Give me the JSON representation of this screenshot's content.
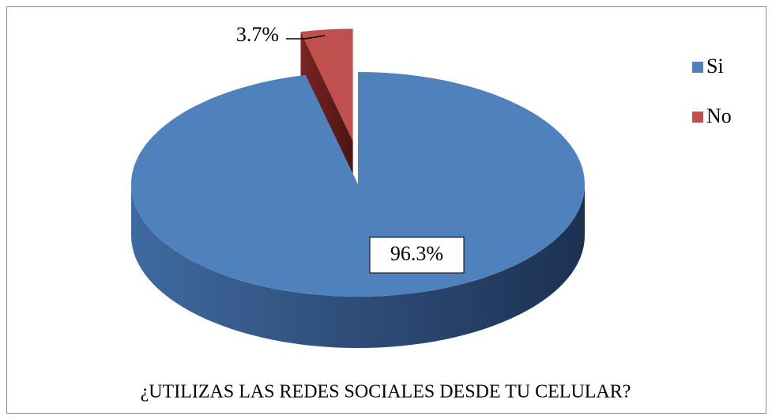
{
  "chart_data": {
    "type": "pie",
    "title": "¿UTILIZAS LAS REDES SOCIALES DESDE TU CELULAR?",
    "categories": [
      "Si",
      "No"
    ],
    "values": [
      96.3,
      3.7
    ],
    "value_labels": [
      "96.3%",
      "3.7%"
    ],
    "colors": [
      "#4f81bd",
      "#c0504d"
    ],
    "legend": "right"
  }
}
